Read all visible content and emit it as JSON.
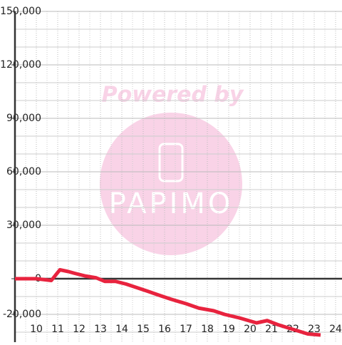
{
  "chart_data": {
    "type": "line",
    "x": [
      9,
      10,
      10.7,
      11.1,
      11.5,
      11.8,
      12.3,
      12.8,
      13.2,
      13.7,
      14.2,
      14.7,
      15.2,
      15.8,
      16.3,
      17,
      17.6,
      18.3,
      18.8,
      19.5,
      20.3,
      20.8,
      21.3,
      22,
      22.7,
      23.3
    ],
    "series": [
      {
        "color": "#e8233e",
        "values": [
          0,
          0,
          -1000,
          5000,
          4000,
          3000,
          1500,
          500,
          -1500,
          -1500,
          -3000,
          -5000,
          -7000,
          -9500,
          -11500,
          -14000,
          -16500,
          -18000,
          -20000,
          -22000,
          -24800,
          -23500,
          -25800,
          -28400,
          -31000,
          -31600
        ]
      }
    ],
    "xlim": [
      9,
      24.3
    ],
    "ylim": [
      -35000,
      150000
    ],
    "xticks": [
      10,
      11,
      12,
      13,
      14,
      15,
      16,
      17,
      18,
      19,
      20,
      21,
      22,
      23,
      24
    ],
    "minor_xticks": [
      9.5,
      10.5,
      11.5,
      12.5,
      13.5,
      14.5,
      15.5,
      16.5,
      17.5,
      18.5,
      19.5,
      20.5,
      21.5,
      22.5,
      23.5
    ],
    "yticks": [
      {
        "value": -20000,
        "label": "-20,000"
      },
      0,
      {
        "value": 30000,
        "label": "30,000"
      },
      {
        "value": 60000,
        "label": "60,000"
      },
      {
        "value": 90000,
        "label": "90,000"
      },
      {
        "value": 120000,
        "label": "120,000"
      },
      {
        "value": 150000,
        "label": "150,000"
      }
    ],
    "minor_yticks": [
      -30000,
      -10000,
      10000,
      20000,
      40000,
      50000,
      70000,
      80000,
      100000,
      110000,
      130000,
      140000
    ],
    "grid": true,
    "watermark": {
      "line1": "Powered by",
      "line2": "PAPIMO"
    }
  }
}
